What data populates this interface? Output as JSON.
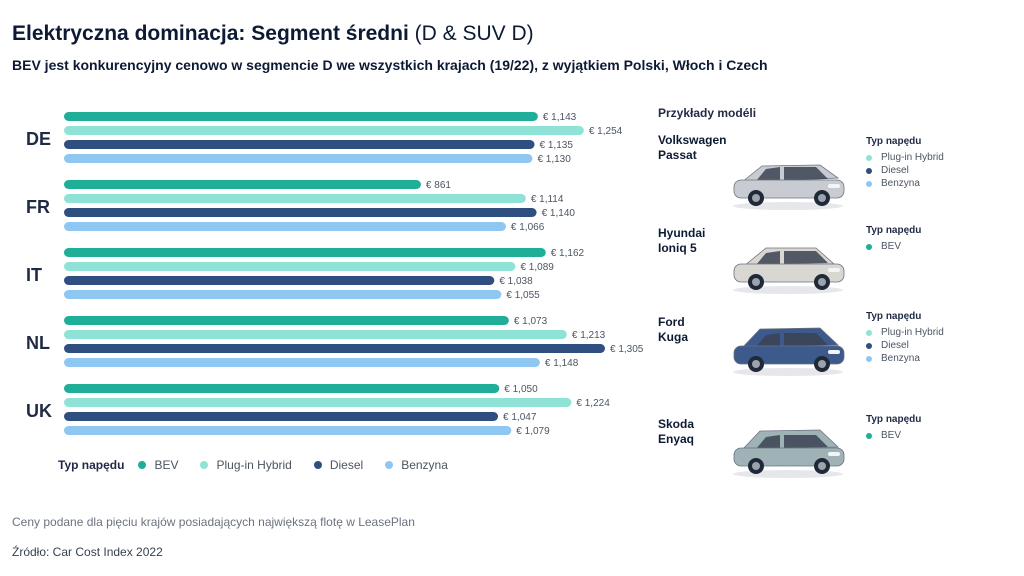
{
  "header": {
    "title_bold": "Elektryczna dominacja: Segment średni",
    "title_light": "(D & SUV D)",
    "subtitle": "BEV jest konkurencyjny cenowo w segmencie D we wszystkich krajach (19/22), z wyjątkiem Polski, Włoch i Czech"
  },
  "colors": {
    "BEV": "#1fae98",
    "Plug-in Hybrid": "#8fe3d6",
    "Diesel": "#2f4f80",
    "Benzyna": "#8ec7f2"
  },
  "chart_data": {
    "type": "bar",
    "orientation": "horizontal",
    "categories": [
      "DE",
      "FR",
      "IT",
      "NL",
      "UK"
    ],
    "value_prefix": "€ ",
    "series": [
      {
        "name": "BEV",
        "values": [
          1143,
          861,
          1162,
          1073,
          1050
        ],
        "labels": [
          "€ 1,143",
          "€ 861",
          "€ 1,162",
          "€ 1,073",
          "€ 1,050"
        ]
      },
      {
        "name": "Plug-in Hybrid",
        "values": [
          1254,
          1114,
          1089,
          1213,
          1224
        ],
        "labels": [
          "€ 1,254",
          "€ 1,114",
          "€ 1,089",
          "€ 1,213",
          "€ 1,224"
        ]
      },
      {
        "name": "Diesel",
        "values": [
          1135,
          1140,
          1038,
          1305,
          1047
        ],
        "labels": [
          "€ 1,135",
          "€ 1,140",
          "€ 1,038",
          "€ 1,305",
          "€ 1,047"
        ]
      },
      {
        "name": "Benzyna",
        "values": [
          1130,
          1066,
          1055,
          1148,
          1079
        ],
        "labels": [
          "€ 1,130",
          "€ 1,066",
          "€ 1,055",
          "€ 1,148",
          "€ 1,079"
        ]
      }
    ],
    "xlim": [
      0,
      1305
    ],
    "grid": false,
    "legend_title": "Typ napędu",
    "legend_position": "bottom"
  },
  "panel": {
    "title": "Przykłady modéli",
    "drive_title": "Typ napędu",
    "models": [
      {
        "line1": "Volkswagen",
        "line2": "Passat",
        "icon": "station-wagon-car-icon",
        "color": "#c8ccd2",
        "drives": [
          {
            "label": "Plug-in Hybrid",
            "type": "Plug-in Hybrid"
          },
          {
            "label": "Diesel",
            "type": "Diesel"
          },
          {
            "label": "Benzyna",
            "type": "Benzyna"
          }
        ]
      },
      {
        "line1": "Hyundai",
        "line2": "Ioniq 5",
        "icon": "hatchback-car-icon",
        "color": "#d9d7d2",
        "drives": [
          {
            "label": "BEV",
            "type": "BEV"
          }
        ]
      },
      {
        "line1": "Ford",
        "line2": "Kuga",
        "icon": "suv-car-icon",
        "color": "#3d5a8c",
        "drives": [
          {
            "label": "Plug-in Hybrid",
            "type": "Plug-in Hybrid"
          },
          {
            "label": "Diesel",
            "type": "Diesel"
          },
          {
            "label": "Benzyna",
            "type": "Benzyna"
          }
        ]
      },
      {
        "line1": "Skoda",
        "line2": "Enyaq",
        "icon": "suv-car-icon",
        "color": "#9fb3b6",
        "drives": [
          {
            "label": "BEV",
            "type": "BEV"
          }
        ]
      }
    ]
  },
  "footer": {
    "note": "Ceny podane dla pięciu krajów posiadających największą flotę w LeasePlan",
    "source": "Źródło: Car Cost Index 2022"
  }
}
